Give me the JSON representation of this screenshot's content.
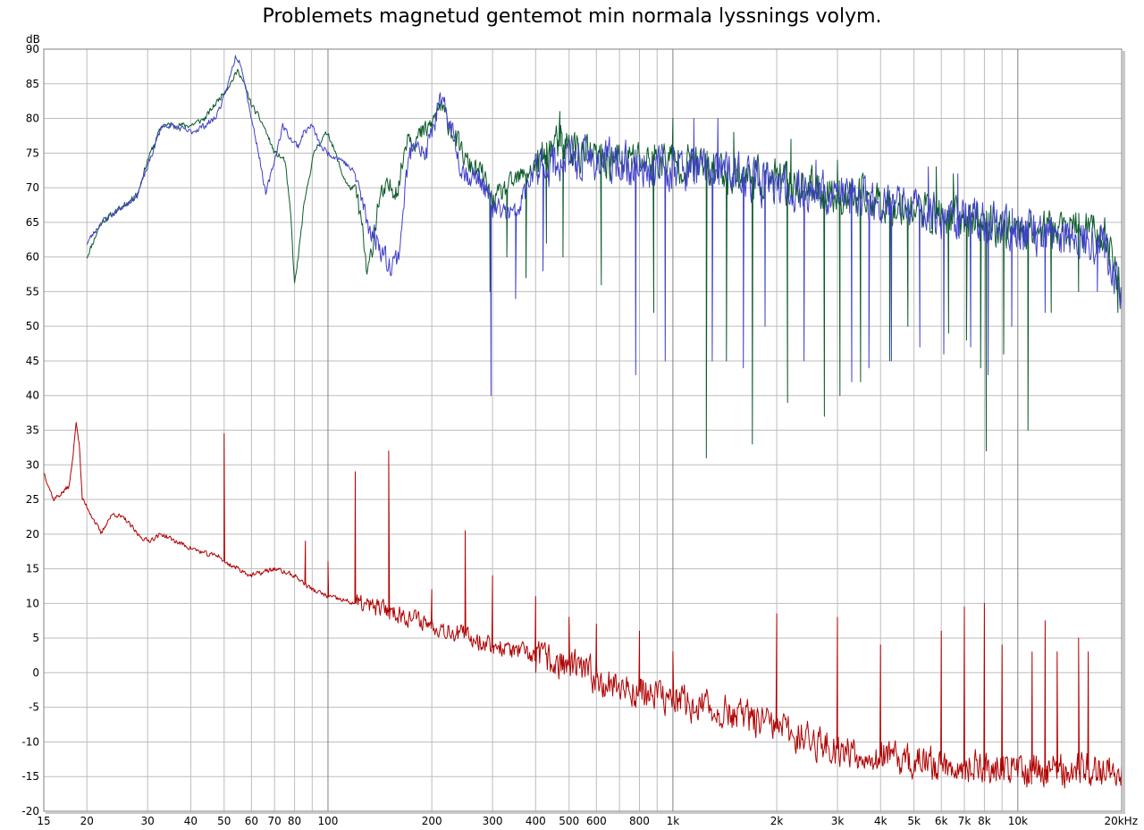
{
  "chart_data": {
    "type": "line",
    "title": "Problemets magnetud gentemot min normala lyssnings volym.",
    "ylabel": "dB",
    "xscale": "log",
    "xlim": [
      15,
      20000
    ],
    "ylim": [
      -20,
      90
    ],
    "grid": true,
    "colors": {
      "green": "#0b5a2a",
      "blue": "#4040c8",
      "red": "#b00000",
      "grid": "#bdbdbd",
      "major_grid": "#808080"
    },
    "y_ticks": [
      90,
      85,
      80,
      75,
      70,
      65,
      60,
      55,
      50,
      45,
      40,
      35,
      30,
      25,
      20,
      15,
      10,
      5,
      0,
      -5,
      -10,
      -15,
      -20
    ],
    "x_ticks": [
      {
        "v": 15,
        "label": "15"
      },
      {
        "v": 20,
        "label": "20"
      },
      {
        "v": 30,
        "label": "30"
      },
      {
        "v": 40,
        "label": "40"
      },
      {
        "v": 50,
        "label": "50"
      },
      {
        "v": 60,
        "label": "60"
      },
      {
        "v": 70,
        "label": "70"
      },
      {
        "v": 80,
        "label": "80"
      },
      {
        "v": 100,
        "label": "100"
      },
      {
        "v": 200,
        "label": "200"
      },
      {
        "v": 300,
        "label": "300"
      },
      {
        "v": 400,
        "label": "400"
      },
      {
        "v": 500,
        "label": "500"
      },
      {
        "v": 600,
        "label": "600"
      },
      {
        "v": 800,
        "label": "800"
      },
      {
        "v": 1000,
        "label": "1k"
      },
      {
        "v": 2000,
        "label": "2k"
      },
      {
        "v": 3000,
        "label": "3k"
      },
      {
        "v": 4000,
        "label": "4k"
      },
      {
        "v": 5000,
        "label": "5k"
      },
      {
        "v": 6000,
        "label": "6k"
      },
      {
        "v": 7000,
        "label": "7k"
      },
      {
        "v": 8000,
        "label": "8k"
      },
      {
        "v": 10000,
        "label": "10k"
      },
      {
        "v": 20000,
        "label": "20kHz"
      }
    ],
    "series": [
      {
        "color": "green",
        "base": [
          [
            20,
            60
          ],
          [
            22,
            65
          ],
          [
            25,
            67
          ],
          [
            28,
            69
          ],
          [
            30,
            74
          ],
          [
            33,
            79
          ],
          [
            35,
            79
          ],
          [
            40,
            79
          ],
          [
            44,
            80
          ],
          [
            47,
            82
          ],
          [
            52,
            85
          ],
          [
            55,
            87
          ],
          [
            57,
            85
          ],
          [
            60,
            82
          ],
          [
            65,
            79
          ],
          [
            70,
            75
          ],
          [
            75,
            74
          ],
          [
            78,
            66
          ],
          [
            80,
            56
          ],
          [
            82,
            60
          ],
          [
            85,
            67
          ],
          [
            90,
            74
          ],
          [
            93,
            76
          ],
          [
            96,
            77
          ],
          [
            100,
            78
          ],
          [
            105,
            75
          ],
          [
            110,
            72
          ],
          [
            115,
            70
          ],
          [
            120,
            70
          ],
          [
            125,
            65
          ],
          [
            130,
            57
          ],
          [
            135,
            62
          ],
          [
            140,
            68
          ],
          [
            150,
            70
          ],
          [
            160,
            70
          ],
          [
            170,
            78
          ],
          [
            180,
            77
          ],
          [
            190,
            78
          ],
          [
            200,
            79
          ],
          [
            210,
            82
          ],
          [
            220,
            80
          ],
          [
            230,
            78
          ],
          [
            240,
            76
          ],
          [
            250,
            74
          ],
          [
            260,
            73
          ],
          [
            280,
            72
          ],
          [
            300,
            68
          ],
          [
            350,
            71
          ],
          [
            400,
            73
          ],
          [
            450,
            76
          ],
          [
            500,
            76
          ],
          [
            600,
            74
          ],
          [
            800,
            74
          ],
          [
            1000,
            74
          ],
          [
            1200,
            73
          ],
          [
            1500,
            72
          ],
          [
            2000,
            71
          ],
          [
            3000,
            69
          ],
          [
            4000,
            68
          ],
          [
            6000,
            66
          ],
          [
            8000,
            65
          ],
          [
            10000,
            64
          ],
          [
            12000,
            64
          ],
          [
            15000,
            64
          ],
          [
            18000,
            63
          ],
          [
            19000,
            59
          ],
          [
            20000,
            55
          ]
        ],
        "dips": [
          [
            295,
            55
          ],
          [
            330,
            60
          ],
          [
            375,
            57
          ],
          [
            430,
            62
          ],
          [
            480,
            60
          ],
          [
            620,
            56
          ],
          [
            880,
            52
          ],
          [
            1250,
            31
          ],
          [
            1430,
            45
          ],
          [
            1700,
            33
          ],
          [
            2150,
            39
          ],
          [
            2750,
            37
          ],
          [
            3050,
            40
          ],
          [
            3500,
            42
          ],
          [
            4250,
            45
          ],
          [
            4800,
            50
          ],
          [
            6300,
            49
          ],
          [
            7100,
            48
          ],
          [
            7800,
            44
          ],
          [
            8100,
            32
          ],
          [
            9100,
            46
          ],
          [
            10700,
            35
          ],
          [
            12500,
            52
          ],
          [
            15000,
            55
          ],
          [
            19500,
            52
          ]
        ],
        "peaks": [
          [
            470,
            81
          ],
          [
            1000,
            80
          ],
          [
            1500,
            78
          ],
          [
            2200,
            77
          ],
          [
            3000,
            74
          ],
          [
            5800,
            73
          ],
          [
            6500,
            72
          ]
        ],
        "noise": 2.6,
        "seed": 11
      },
      {
        "color": "blue",
        "base": [
          [
            20,
            62
          ],
          [
            22,
            65
          ],
          [
            25,
            67
          ],
          [
            28,
            69
          ],
          [
            30,
            73
          ],
          [
            33,
            79
          ],
          [
            35,
            79
          ],
          [
            40,
            78
          ],
          [
            44,
            79
          ],
          [
            47,
            80
          ],
          [
            50,
            83
          ],
          [
            52,
            86
          ],
          [
            54,
            89
          ],
          [
            56,
            88
          ],
          [
            58,
            84
          ],
          [
            60,
            80
          ],
          [
            63,
            75
          ],
          [
            66,
            69
          ],
          [
            70,
            74
          ],
          [
            74,
            79
          ],
          [
            78,
            77
          ],
          [
            82,
            76
          ],
          [
            85,
            78
          ],
          [
            90,
            79
          ],
          [
            95,
            76
          ],
          [
            100,
            75
          ],
          [
            110,
            74
          ],
          [
            120,
            72
          ],
          [
            130,
            65
          ],
          [
            140,
            62
          ],
          [
            150,
            59
          ],
          [
            160,
            60
          ],
          [
            170,
            73
          ],
          [
            180,
            78
          ],
          [
            190,
            74
          ],
          [
            200,
            78
          ],
          [
            210,
            82
          ],
          [
            220,
            81
          ],
          [
            230,
            78
          ],
          [
            240,
            74
          ],
          [
            250,
            72
          ],
          [
            280,
            71
          ],
          [
            300,
            67
          ],
          [
            350,
            66
          ],
          [
            400,
            73
          ],
          [
            500,
            74
          ],
          [
            600,
            74
          ],
          [
            800,
            73
          ],
          [
            1000,
            73
          ],
          [
            1500,
            72
          ],
          [
            2000,
            70
          ],
          [
            3000,
            69
          ],
          [
            4000,
            68
          ],
          [
            6000,
            66
          ],
          [
            8000,
            65
          ],
          [
            10000,
            64
          ],
          [
            12000,
            63
          ],
          [
            15000,
            63
          ],
          [
            18000,
            62
          ],
          [
            19000,
            58
          ],
          [
            20000,
            54
          ]
        ],
        "dips": [
          [
            297,
            40
          ],
          [
            350,
            54
          ],
          [
            420,
            58
          ],
          [
            780,
            43
          ],
          [
            950,
            45
          ],
          [
            1300,
            45
          ],
          [
            1600,
            44
          ],
          [
            1850,
            50
          ],
          [
            2400,
            45
          ],
          [
            3300,
            42
          ],
          [
            3700,
            44
          ],
          [
            4300,
            45
          ],
          [
            5200,
            47
          ],
          [
            6100,
            46
          ],
          [
            7300,
            47
          ],
          [
            8200,
            43
          ],
          [
            9600,
            50
          ],
          [
            12000,
            52
          ],
          [
            17000,
            55
          ]
        ],
        "peaks": [
          [
            1150,
            80
          ],
          [
            1350,
            80
          ],
          [
            2600,
            74
          ],
          [
            5500,
            73
          ],
          [
            6700,
            72
          ]
        ],
        "noise": 2.8,
        "seed": 23
      },
      {
        "color": "red",
        "base": [
          [
            15,
            29
          ],
          [
            16,
            25
          ],
          [
            17,
            26
          ],
          [
            17.8,
            27
          ],
          [
            18.3,
            32
          ],
          [
            18.6,
            36.5
          ],
          [
            19,
            33
          ],
          [
            19.4,
            25
          ],
          [
            20,
            24
          ],
          [
            21,
            22
          ],
          [
            22,
            20
          ],
          [
            23,
            22
          ],
          [
            24,
            23
          ],
          [
            26,
            22
          ],
          [
            28,
            20
          ],
          [
            30,
            19
          ],
          [
            33,
            20
          ],
          [
            36,
            19
          ],
          [
            40,
            18
          ],
          [
            45,
            17
          ],
          [
            48,
            17
          ],
          [
            50,
            16
          ],
          [
            55,
            15
          ],
          [
            60,
            14
          ],
          [
            70,
            15
          ],
          [
            80,
            14
          ],
          [
            90,
            12
          ],
          [
            100,
            11
          ],
          [
            120,
            10
          ],
          [
            150,
            9
          ],
          [
            200,
            7
          ],
          [
            300,
            4
          ],
          [
            500,
            1
          ],
          [
            700,
            -2
          ],
          [
            1000,
            -4
          ],
          [
            1500,
            -6
          ],
          [
            2000,
            -8
          ],
          [
            3000,
            -11
          ],
          [
            5000,
            -13
          ],
          [
            10000,
            -14
          ],
          [
            15000,
            -14
          ],
          [
            20000,
            -14
          ]
        ],
        "peaks": [
          [
            50,
            34.5
          ],
          [
            86,
            19
          ],
          [
            100,
            16
          ],
          [
            120,
            29
          ],
          [
            150,
            32
          ],
          [
            200,
            12
          ],
          [
            250,
            20.5
          ],
          [
            300,
            14
          ],
          [
            400,
            11
          ],
          [
            500,
            8
          ],
          [
            600,
            7
          ],
          [
            800,
            6
          ],
          [
            1000,
            3
          ],
          [
            2000,
            8.5
          ],
          [
            3000,
            8
          ],
          [
            4000,
            4
          ],
          [
            6000,
            6
          ],
          [
            7000,
            9.5
          ],
          [
            8000,
            10
          ],
          [
            9000,
            4
          ],
          [
            11000,
            3
          ],
          [
            12000,
            7.5
          ],
          [
            13000,
            3
          ],
          [
            15000,
            5
          ],
          [
            16000,
            3
          ]
        ],
        "noise": 2.2,
        "seed": 37
      }
    ]
  }
}
